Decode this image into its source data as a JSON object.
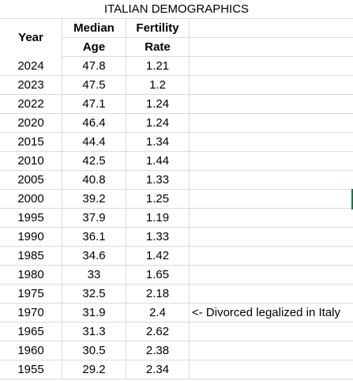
{
  "title": "ITALIAN DEMOGRAPHICS",
  "headers": {
    "year": "Year",
    "median_line1": "Median",
    "median_line2": "Age",
    "fertility_line1": "Fertility",
    "fertility_line2": "Rate"
  },
  "rows": [
    {
      "year": "2024",
      "median_age": "47.8",
      "fertility_rate": "1.21",
      "note": ""
    },
    {
      "year": "2023",
      "median_age": "47.5",
      "fertility_rate": "1.2",
      "note": ""
    },
    {
      "year": "2022",
      "median_age": "47.1",
      "fertility_rate": "1.24",
      "note": ""
    },
    {
      "year": "2020",
      "median_age": "46.4",
      "fertility_rate": "1.24",
      "note": ""
    },
    {
      "year": "2015",
      "median_age": "44.4",
      "fertility_rate": "1.34",
      "note": ""
    },
    {
      "year": "2010",
      "median_age": "42.5",
      "fertility_rate": "1.44",
      "note": ""
    },
    {
      "year": "2005",
      "median_age": "40.8",
      "fertility_rate": "1.33",
      "note": ""
    },
    {
      "year": "2000",
      "median_age": "39.2",
      "fertility_rate": "1.25",
      "note": ""
    },
    {
      "year": "1995",
      "median_age": "37.9",
      "fertility_rate": "1.19",
      "note": ""
    },
    {
      "year": "1990",
      "median_age": "36.1",
      "fertility_rate": "1.33",
      "note": ""
    },
    {
      "year": "1985",
      "median_age": "34.6",
      "fertility_rate": "1.42",
      "note": ""
    },
    {
      "year": "1980",
      "median_age": "33",
      "fertility_rate": "1.65",
      "note": ""
    },
    {
      "year": "1975",
      "median_age": "32.5",
      "fertility_rate": "2.18",
      "note": ""
    },
    {
      "year": "1970",
      "median_age": "31.9",
      "fertility_rate": "2.4",
      "note": "<- Divorced legalized in Italy"
    },
    {
      "year": "1965",
      "median_age": "31.3",
      "fertility_rate": "2.62",
      "note": ""
    },
    {
      "year": "1960",
      "median_age": "30.5",
      "fertility_rate": "2.38",
      "note": ""
    },
    {
      "year": "1955",
      "median_age": "29.2",
      "fertility_rate": "2.34",
      "note": ""
    }
  ]
}
